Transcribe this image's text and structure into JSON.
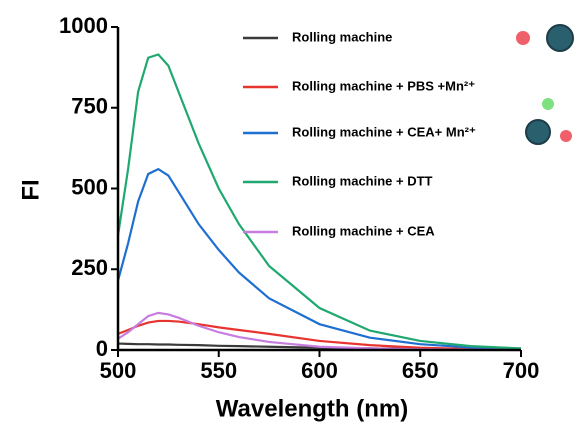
{
  "chart_data": {
    "type": "line",
    "xlabel": "Wavelength (nm)",
    "ylabel": "FI",
    "x": [
      500,
      505,
      510,
      515,
      520,
      525,
      530,
      540,
      550,
      560,
      575,
      600,
      625,
      650,
      675,
      700
    ],
    "series": [
      {
        "name": "Rolling machine",
        "color": "#3a3a3a",
        "values": [
          20,
          19,
          18,
          18,
          17,
          17,
          16,
          15,
          13,
          12,
          10,
          7,
          5,
          3,
          2,
          1
        ]
      },
      {
        "name": "Rolling machine + PBS +Mn²⁺",
        "color": "#e8342f",
        "values": [
          50,
          62,
          75,
          85,
          90,
          90,
          88,
          80,
          70,
          62,
          50,
          28,
          15,
          7,
          3,
          1
        ]
      },
      {
        "name": "Rolling machine + CEA+ Mn²⁺",
        "color": "#1f6fd1",
        "values": [
          215,
          330,
          460,
          545,
          560,
          540,
          490,
          390,
          310,
          240,
          160,
          80,
          38,
          18,
          8,
          3
        ]
      },
      {
        "name": "Rolling machine + DTT",
        "color": "#1fa870",
        "values": [
          355,
          560,
          800,
          905,
          915,
          880,
          800,
          640,
          500,
          390,
          260,
          130,
          60,
          28,
          12,
          5
        ]
      },
      {
        "name": "Rolling machine + CEA",
        "color": "#c77de0",
        "values": [
          35,
          55,
          80,
          105,
          115,
          110,
          100,
          75,
          55,
          40,
          25,
          10,
          5,
          2,
          1,
          0
        ]
      }
    ],
    "xlim": [
      500,
      700
    ],
    "xticks": [
      500,
      550,
      600,
      650,
      700
    ],
    "ylim": [
      0,
      1000
    ],
    "yticks": [
      0,
      250,
      500,
      750,
      1000
    ],
    "grid": false,
    "legend": "upper right"
  }
}
